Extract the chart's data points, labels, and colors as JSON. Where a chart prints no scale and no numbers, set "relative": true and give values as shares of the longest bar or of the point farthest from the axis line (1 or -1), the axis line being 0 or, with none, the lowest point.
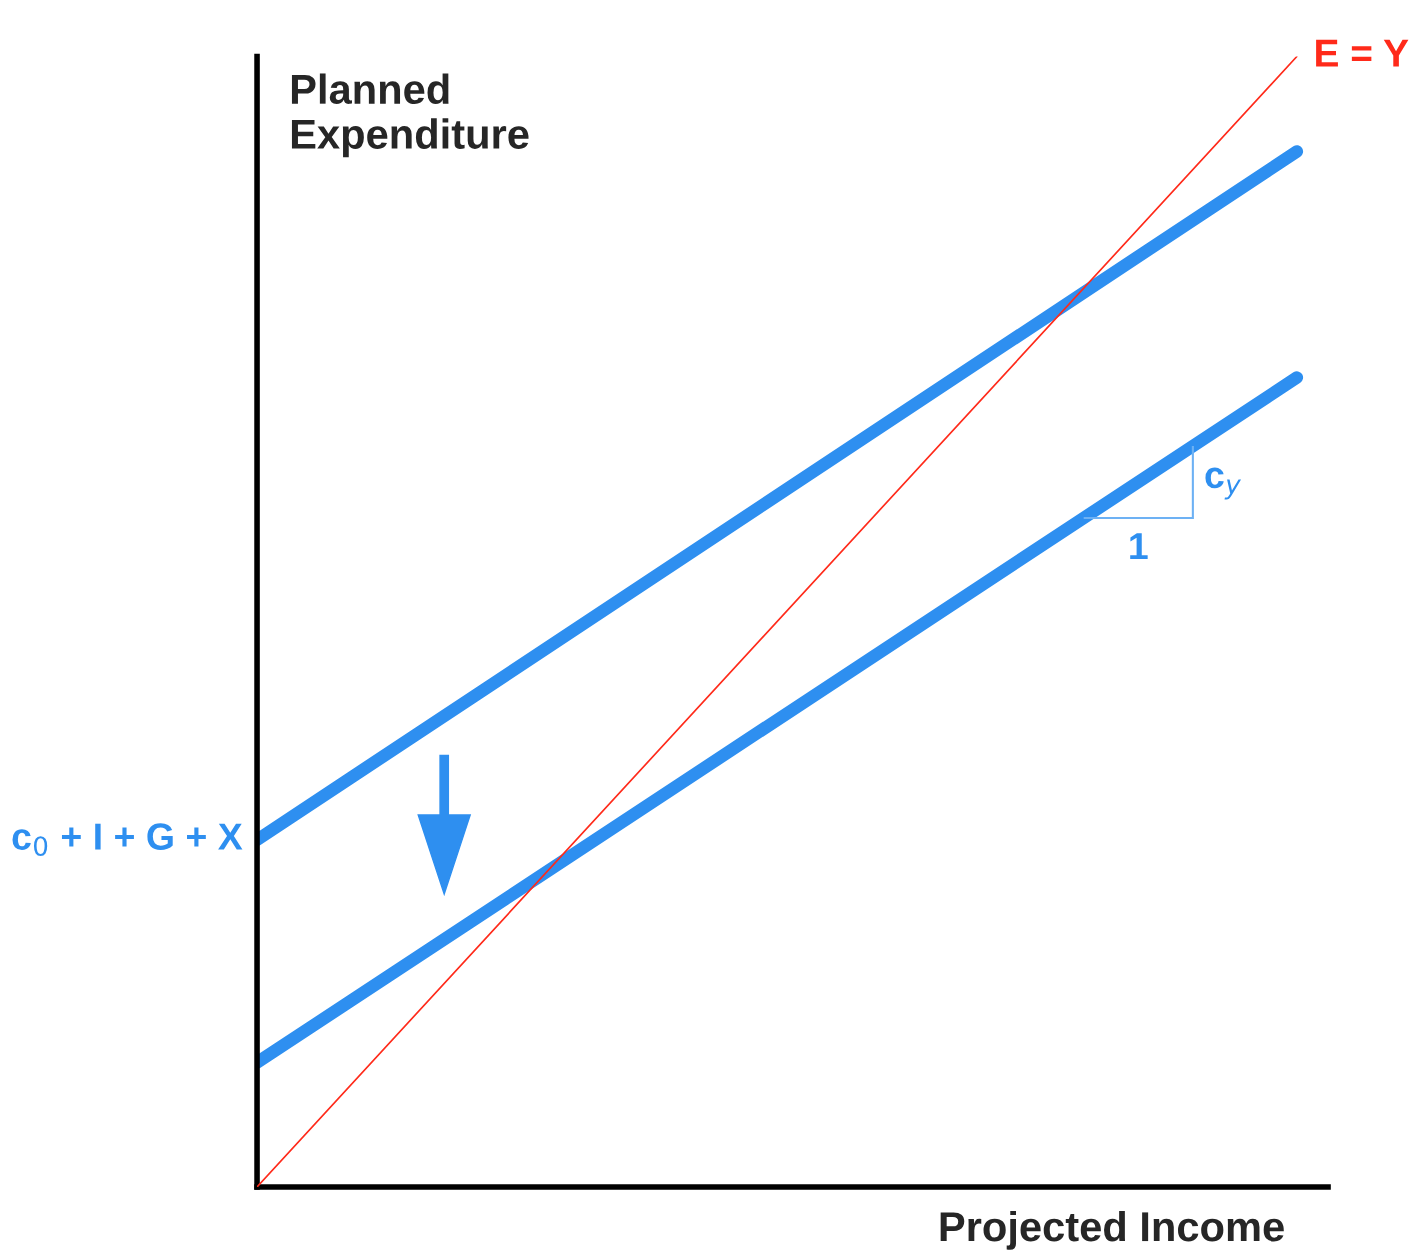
{
  "chart_data": {
    "type": "line",
    "relative": true,
    "xlabel": "Projected Income",
    "ylabel": "Planned Expenditure",
    "categories": [
      null,
      null
    ],
    "series": [
      {
        "color": "#2e8ff0",
        "values": [
          0.307,
          0.916
        ]
      },
      {
        "color": "#2e8ff0",
        "values": [
          0.11,
          0.716
        ]
      },
      {
        "name": "E = Y",
        "color": "#ff2a1a",
        "values": [
          0,
          1
        ]
      }
    ],
    "annotations": [
      "c$_{0}$ + I + G + X",
      "c$_{y}$",
      "1"
    ]
  }
}
